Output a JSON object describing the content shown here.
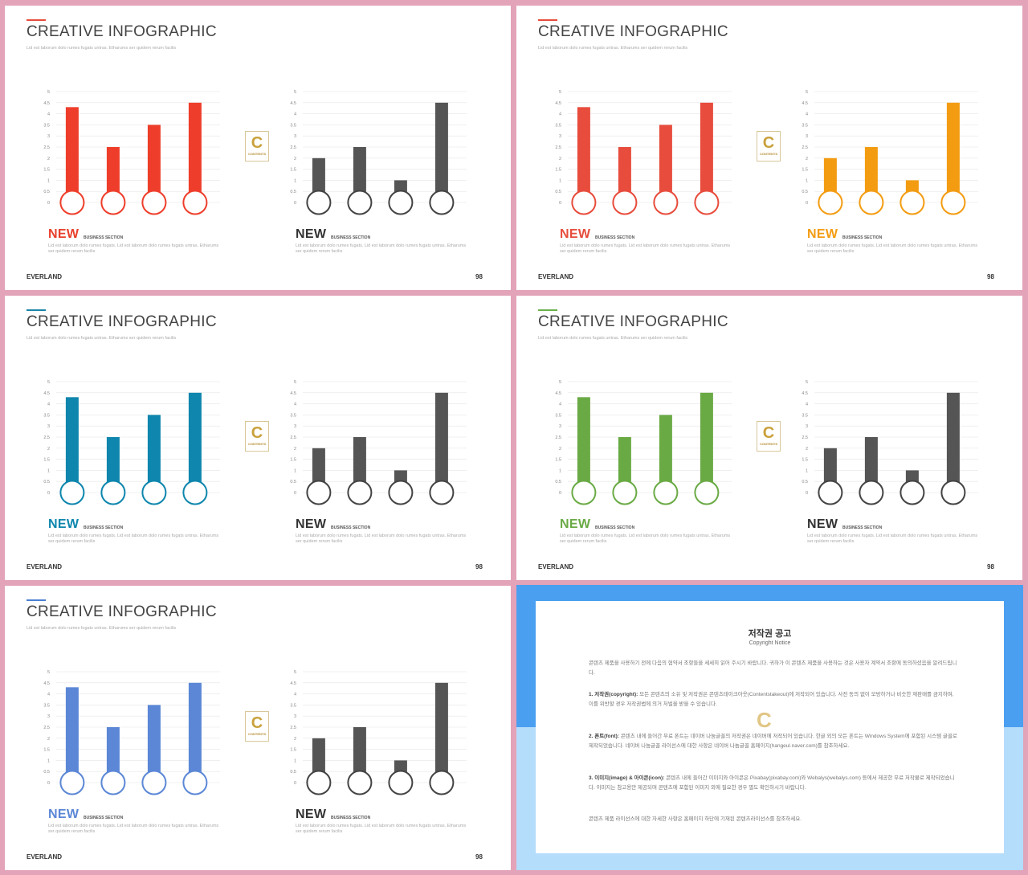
{
  "slides": [
    {
      "title": "CREATIVE INFOGRAPHIC",
      "subtitle": "Lid est laborum dolo rumes fugats untras. Etharums ser quidem rerum facilis",
      "accent": "#e74c3c",
      "left_color": "#ee3e2b",
      "right_color": "#555555",
      "right_circle": "#444444",
      "new_left_color": "#e8402c",
      "new_right_color": "#333333",
      "brand": "EVERLAND",
      "page": "98",
      "show_logo": true
    },
    {
      "title": "CREATIVE INFOGRAPHIC",
      "subtitle": "Lid est laborum dolo rumes fugats untras. Etharums ser quidem rerum facilis",
      "accent": "#e74c3c",
      "left_color": "#e74c3c",
      "right_color": "#f39c12",
      "right_circle": "#f39c12",
      "new_left_color": "#e74c3c",
      "new_right_color": "#f39c12",
      "brand": "EVERLAND",
      "page": "98",
      "show_logo": true
    },
    {
      "title": "CREATIVE INFOGRAPHIC",
      "subtitle": "Lid est laborum dolo rumes fugats untras. Etharums ser quidem rerum facilis",
      "accent": "#1a85a8",
      "left_color": "#0e86ad",
      "right_color": "#555555",
      "right_circle": "#444444",
      "new_left_color": "#0e86ad",
      "new_right_color": "#333333",
      "brand": "EVERLAND",
      "page": "98",
      "show_logo": true
    },
    {
      "title": "CREATIVE INFOGRAPHIC",
      "subtitle": "Lid est laborum dolo rumes fugats untras. Etharums ser quidem rerum facilis",
      "accent": "#6ab04c",
      "left_color": "#6aaa45",
      "right_color": "#555555",
      "right_circle": "#444444",
      "new_left_color": "#6aaa45",
      "new_right_color": "#333333",
      "brand": "EVERLAND",
      "page": "98",
      "show_logo": true
    },
    {
      "title": "CREATIVE INFOGRAPHIC",
      "subtitle": "Lid est laborum dolo rumes fugats untras. Etharums ser quidem rerum facilis",
      "accent": "#4a7fd4",
      "left_color": "#5b87d6",
      "right_color": "#555555",
      "right_circle": "#444444",
      "new_left_color": "#5b87d6",
      "new_right_color": "#333333",
      "brand": "EVERLAND",
      "page": "98",
      "show_logo": true
    }
  ],
  "panel_text": {
    "new_label": "NEW",
    "section_label": "BUSINESS SECTION",
    "description": "Lid est laborum dolo rumes fugats. Lid est laborum dolo rumes fugats untras. Etharums ser quidem rerum facilis"
  },
  "logo": {
    "letter": "C",
    "text": "CONTENTS"
  },
  "chart_data": {
    "type": "bar",
    "ylim": [
      0,
      5
    ],
    "yticks": [
      "0",
      "0.5",
      "1",
      "1.5",
      "2",
      "2.5",
      "3",
      "3.5",
      "4",
      "4.5",
      "5"
    ],
    "left_values": [
      4.3,
      2.5,
      3.5,
      4.5
    ],
    "right_values": [
      2.0,
      2.5,
      1.0,
      4.5
    ]
  },
  "notice": {
    "title": "저작권 공고",
    "subtitle": "Copyright Notice",
    "intro": "콘텐츠 제품을 사용하기 전에 다음의 협약서 조항들을 세세히 읽어 주시기 바랍니다. 귀하가 이 콘텐츠 제품을 사용하는 것은 사용자 계약서 조항에 동의하셨음을 알려드립니다.",
    "p1_head": "1. 저작권(copyright):",
    "p1_body": "모든 콘텐츠의 소유 및 저작권은 콘텐츠테이크아웃(Contentstakeout)에 저작되어 있습니다. 사전 동의 없이 모방하거나 비슷한 재판매를 금지하며, 이를 위반할 경우 저작권법에 의거 처벌을 받을 수 있습니다.",
    "p2_head": "2. 폰트(font):",
    "p2_body": "콘텐츠 내에 들어간 무료 폰트는 네이버 나눔글꼴의 저작권은 네이버에 저작되어 있습니다. 한글 외의 모든 폰트는 Windows System에 포함된 시스템 글꼴로 제작되었습니다. 네이버 나눔글꼴 라이선스에 대한 사항은 네이버 나눔글꼴 홈페이지(hangeul.naver.com)를 참조하세요.",
    "p3_head": "3. 이미지(image) & 아이콘(icon):",
    "p3_body": "콘텐츠 내에 들어간 이미지와 아이콘은 Pixabay(pixabay.com)와 Webalys(webalys.com) 등에서 제공한 무료 저작물로 제작되었습니다. 이미지는 참고용만 제공되며 콘텐츠에 포함된 이미지 외에 필요한 경우 별도 확인하시기 바랍니다.",
    "outro": "콘텐츠 제품 라이선스에 대한 자세한 사항은 홈페이지 하단에 기재된 콘텐츠라이선스를 참조하세요."
  }
}
